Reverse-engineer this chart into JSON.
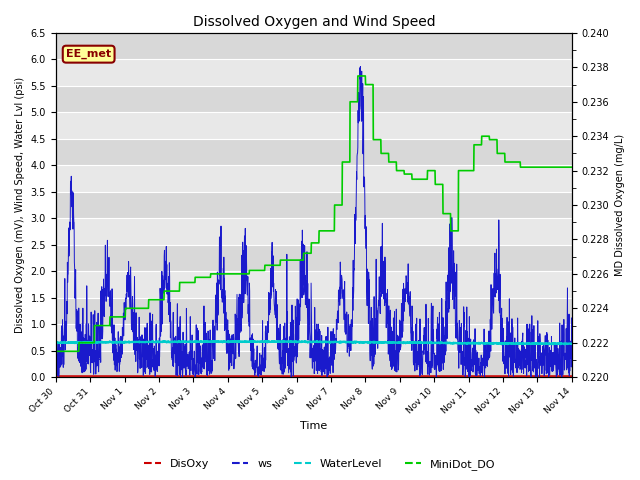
{
  "title": "Dissolved Oxygen and Wind Speed",
  "xlabel": "Time",
  "ylabel_left": "Dissolved Oxygen (mV), Wind Speed, Water Lvl (psi)",
  "ylabel_right": "MD Dissolved Oxygen (mg/L)",
  "ylim_left": [
    0.0,
    6.5
  ],
  "ylim_right": [
    0.22,
    0.24
  ],
  "annotation_text": "EE_met",
  "legend_labels": [
    "DisOxy",
    "ws",
    "WaterLevel",
    "MiniDot_DO"
  ],
  "legend_colors": [
    "#CC0000",
    "#1A1ACC",
    "#00CCCC",
    "#00CC00"
  ],
  "bg_color_light": "#E8E8E8",
  "bg_color_dark": "#D0D0D0",
  "grid_color": "white",
  "xtick_labels": [
    "Oct 30",
    "Oct 31",
    "Nov 1",
    "Nov 2",
    "Nov 3",
    "Nov 4",
    "Nov 5",
    "Nov 6",
    "Nov 7",
    "Nov 8",
    "Nov 9",
    "Nov 10",
    "Nov 11",
    "Nov 12",
    "Nov 13",
    "Nov 14"
  ],
  "yticks_left": [
    0.0,
    0.5,
    1.0,
    1.5,
    2.0,
    2.5,
    3.0,
    3.5,
    4.0,
    4.5,
    5.0,
    5.5,
    6.0,
    6.5
  ],
  "yticks_right": [
    0.22,
    0.222,
    0.224,
    0.226,
    0.228,
    0.23,
    0.232,
    0.234,
    0.236,
    0.238,
    0.24
  ],
  "num_points": 2000,
  "random_seed": 42
}
